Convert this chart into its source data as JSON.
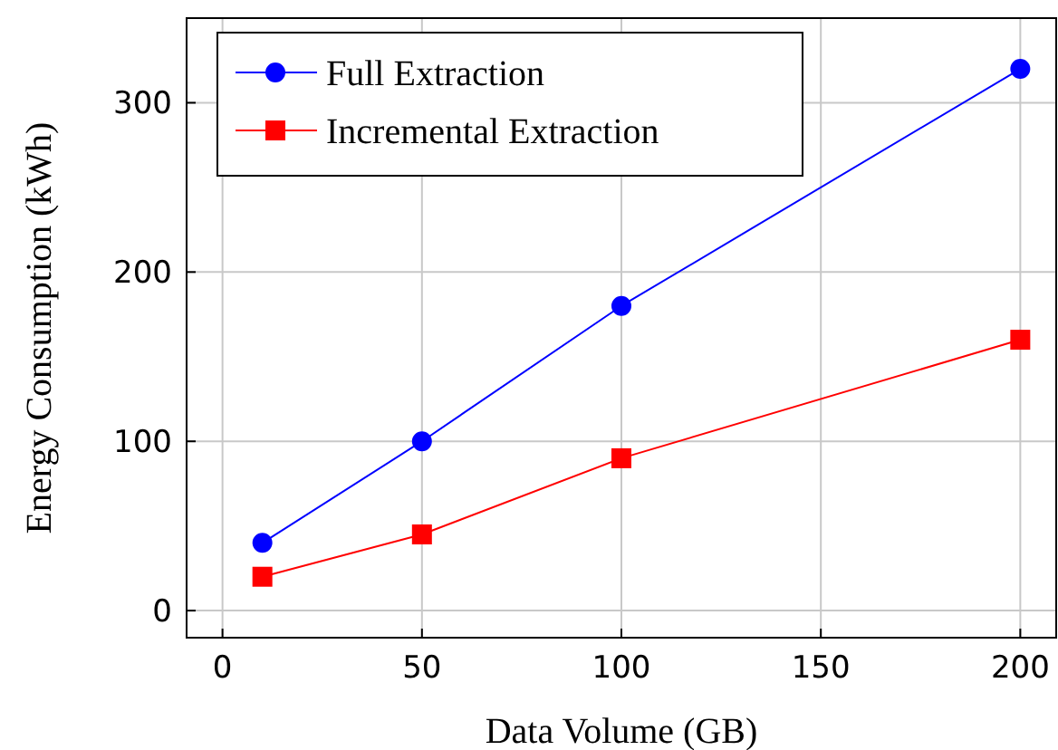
{
  "chart_data": {
    "type": "line",
    "xlabel": "Data Volume (GB)",
    "ylabel": "Energy Consumption (kWh)",
    "x": [
      10,
      50,
      100,
      200
    ],
    "series": [
      {
        "name": "Full Extraction",
        "color": "#0000ff",
        "marker": "circle",
        "values": [
          40,
          100,
          180,
          320
        ]
      },
      {
        "name": "Incremental Extraction",
        "color": "#ff0000",
        "marker": "square",
        "values": [
          20,
          45,
          90,
          160
        ]
      }
    ],
    "xlim": [
      -9,
      209
    ],
    "xticks": [
      0,
      50,
      100,
      150,
      200
    ],
    "ylim": [
      -16,
      350
    ],
    "yticks": [
      0,
      100,
      200,
      300
    ],
    "grid": true,
    "legend": "top left",
    "line_style": "solid"
  }
}
